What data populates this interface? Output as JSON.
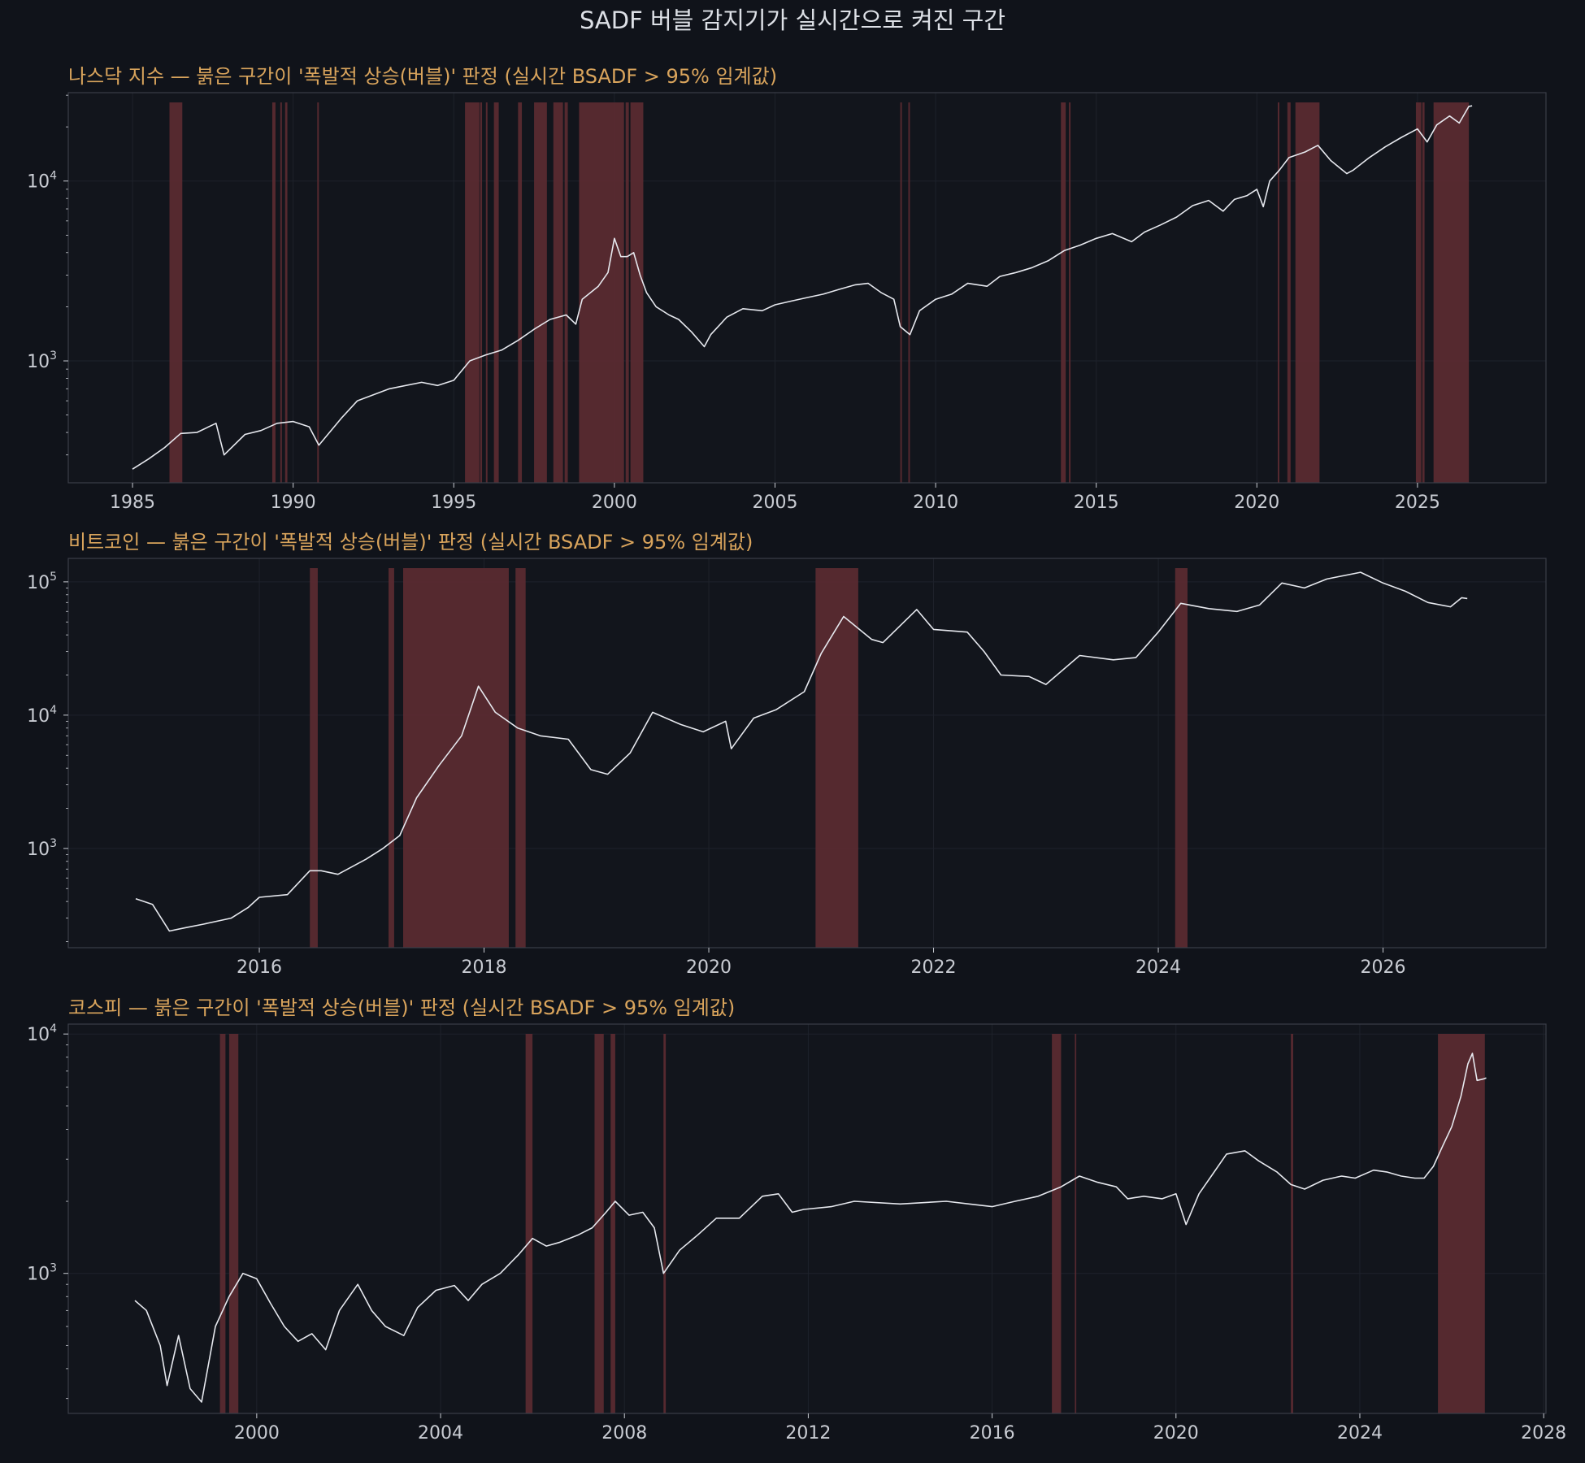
{
  "figure_title": "SADF 버블 감지기가 실시간으로 켜진 구간",
  "colors": {
    "background": "#10131a",
    "plot_background": "#12151c",
    "frame": "#3a3e48",
    "grid": "#1e222b",
    "price_line": "#e6e8ee",
    "bubble_fill": "#5a2a30",
    "title_text": "#d9a45c",
    "tick_text": "#c9ccd3"
  },
  "chart_data": [
    {
      "type": "line",
      "title": "나스닥 지수 — 붉은 구간이 '폭발적 상승(버블)' 판정 (실시간 BSADF > 95% 임계값)",
      "yscale": "log",
      "xlim": [
        1983,
        2029
      ],
      "ylim": [
        210,
        31000
      ],
      "xticks": [
        1985,
        1990,
        1995,
        2000,
        2005,
        2010,
        2015,
        2020,
        2025
      ],
      "xtick_labels": [
        "1985",
        "1990",
        "1995",
        "2000",
        "2005",
        "2010",
        "2015",
        "2020",
        "2025"
      ],
      "yticks": [
        1000,
        10000
      ],
      "ytick_labels": [
        [
          "10",
          "3"
        ],
        [
          "10",
          "4"
        ]
      ],
      "series": [
        {
          "x": [
            1985.0,
            1985.5,
            1986.0,
            1986.5,
            1987.0,
            1987.6,
            1987.85,
            1988.5,
            1989.0,
            1989.5,
            1990.0,
            1990.5,
            1990.8,
            1991.5,
            1992.0,
            1993.0,
            1994.0,
            1994.5,
            1995.0,
            1995.5,
            1996.0,
            1996.5,
            1997.0,
            1997.5,
            1998.0,
            1998.5,
            1998.8,
            1999.0,
            1999.5,
            1999.8,
            2000.0,
            2000.2,
            2000.4,
            2000.6,
            2000.8,
            2001.0,
            2001.3,
            2001.7,
            2002.0,
            2002.4,
            2002.8,
            2003.0,
            2003.5,
            2004.0,
            2004.6,
            2005.0,
            2005.5,
            2006.0,
            2006.5,
            2007.0,
            2007.5,
            2007.9,
            2008.3,
            2008.7,
            2008.9,
            2009.2,
            2009.5,
            2010.0,
            2010.5,
            2011.0,
            2011.6,
            2012.0,
            2012.5,
            2013.0,
            2013.5,
            2014.0,
            2014.5,
            2015.0,
            2015.5,
            2016.1,
            2016.5,
            2017.0,
            2017.5,
            2018.0,
            2018.5,
            2018.95,
            2019.3,
            2019.7,
            2020.0,
            2020.2,
            2020.4,
            2020.7,
            2021.0,
            2021.5,
            2021.9,
            2022.3,
            2022.8,
            2023.0,
            2023.5,
            2024.0,
            2024.5,
            2025.0,
            2025.3,
            2025.6,
            2026.0,
            2026.3,
            2026.6,
            2026.7
          ],
          "y": [
            250,
            285,
            330,
            395,
            400,
            450,
            300,
            390,
            410,
            450,
            460,
            430,
            340,
            480,
            600,
            700,
            760,
            730,
            780,
            1000,
            1080,
            1150,
            1300,
            1500,
            1700,
            1800,
            1600,
            2200,
            2600,
            3100,
            4800,
            3800,
            3800,
            4000,
            3000,
            2400,
            2000,
            1800,
            1700,
            1450,
            1200,
            1400,
            1750,
            1950,
            1900,
            2050,
            2150,
            2250,
            2350,
            2500,
            2650,
            2700,
            2400,
            2200,
            1550,
            1400,
            1900,
            2200,
            2350,
            2700,
            2600,
            2950,
            3100,
            3300,
            3600,
            4100,
            4400,
            4800,
            5100,
            4600,
            5200,
            5700,
            6300,
            7300,
            7800,
            6800,
            7900,
            8300,
            9000,
            7200,
            10000,
            11500,
            13500,
            14500,
            15800,
            13000,
            11000,
            11500,
            13500,
            15500,
            17500,
            19500,
            16500,
            20500,
            23000,
            21000,
            26000,
            26200
          ]
        }
      ],
      "bubble_periods": [
        [
          1986.15,
          1986.55
        ],
        [
          1989.35,
          1989.45
        ],
        [
          1989.6,
          1989.65
        ],
        [
          1989.75,
          1989.82
        ],
        [
          1990.75,
          1990.8
        ],
        [
          1995.35,
          1995.8
        ],
        [
          1995.82,
          1995.88
        ],
        [
          1996.0,
          1996.05
        ],
        [
          1996.25,
          1996.4
        ],
        [
          1997.0,
          1997.12
        ],
        [
          1997.5,
          1997.9
        ],
        [
          1998.1,
          1998.4
        ],
        [
          1998.45,
          1998.55
        ],
        [
          1998.9,
          2000.3
        ],
        [
          2000.35,
          2000.45
        ],
        [
          2000.5,
          2000.9
        ],
        [
          2008.9,
          2008.95
        ],
        [
          2009.15,
          2009.2
        ],
        [
          2013.9,
          2014.05
        ],
        [
          2014.15,
          2014.2
        ],
        [
          2020.65,
          2020.7
        ],
        [
          2020.95,
          2021.05
        ],
        [
          2021.2,
          2021.95
        ],
        [
          2024.95,
          2025.12
        ],
        [
          2025.15,
          2025.22
        ],
        [
          2025.5,
          2026.6
        ]
      ]
    },
    {
      "type": "line",
      "title": "비트코인 — 붉은 구간이 '폭발적 상승(버블)' 판정 (실시간 BSADF > 95% 임계값)",
      "yscale": "log",
      "xlim": [
        2014.3,
        2027.45
      ],
      "ylim": [
        180,
        150000
      ],
      "xticks": [
        2016,
        2018,
        2020,
        2022,
        2024,
        2026
      ],
      "xtick_labels": [
        "2016",
        "2018",
        "2020",
        "2022",
        "2024",
        "2026"
      ],
      "yticks": [
        1000,
        10000,
        100000
      ],
      "ytick_labels": [
        [
          "10",
          "3"
        ],
        [
          "10",
          "4"
        ],
        [
          "10",
          "5"
        ]
      ],
      "series": [
        {
          "x": [
            2014.9,
            2015.05,
            2015.2,
            2015.35,
            2015.5,
            2015.75,
            2015.9,
            2016.0,
            2016.25,
            2016.45,
            2016.55,
            2016.7,
            2016.95,
            2017.1,
            2017.25,
            2017.4,
            2017.6,
            2017.8,
            2017.95,
            2018.1,
            2018.3,
            2018.5,
            2018.75,
            2018.95,
            2019.1,
            2019.3,
            2019.5,
            2019.75,
            2019.95,
            2020.15,
            2020.2,
            2020.4,
            2020.6,
            2020.85,
            2021.0,
            2021.2,
            2021.45,
            2021.55,
            2021.85,
            2022.0,
            2022.3,
            2022.45,
            2022.6,
            2022.85,
            2023.0,
            2023.3,
            2023.6,
            2023.8,
            2024.0,
            2024.2,
            2024.45,
            2024.7,
            2024.9,
            2025.1,
            2025.3,
            2025.5,
            2025.8,
            2026.0,
            2026.2,
            2026.4,
            2026.6,
            2026.7,
            2026.75
          ],
          "y": [
            420,
            380,
            240,
            255,
            270,
            300,
            360,
            430,
            450,
            680,
            680,
            640,
            830,
            1000,
            1250,
            2400,
            4200,
            7000,
            16500,
            10500,
            8000,
            7000,
            6600,
            3900,
            3600,
            5200,
            10500,
            8500,
            7500,
            9000,
            5600,
            9500,
            11000,
            15000,
            29000,
            55000,
            37000,
            35000,
            62000,
            44000,
            42000,
            30000,
            20000,
            19500,
            17000,
            28000,
            26000,
            27000,
            42000,
            69000,
            63000,
            60000,
            67000,
            98000,
            90000,
            105000,
            118000,
            98000,
            85000,
            70000,
            65000,
            76000,
            75000
          ]
        }
      ],
      "bubble_periods": [
        [
          2016.45,
          2016.52
        ],
        [
          2017.15,
          2017.2
        ],
        [
          2017.28,
          2018.22
        ],
        [
          2018.28,
          2018.37
        ],
        [
          2020.95,
          2021.33
        ],
        [
          2024.15,
          2024.26
        ]
      ]
    },
    {
      "type": "line",
      "title": "코스피 — 붉은 구간이 '폭발적 상승(버블)' 판정 (실시간 BSADF > 95% 임계값)",
      "yscale": "log",
      "xlim": [
        1995.9,
        2028.05
      ],
      "ylim": [
        260,
        11000
      ],
      "xticks": [
        2000,
        2004,
        2008,
        2012,
        2016,
        2020,
        2024,
        2028
      ],
      "xtick_labels": [
        "2000",
        "2004",
        "2008",
        "2012",
        "2016",
        "2020",
        "2024",
        "2028"
      ],
      "yticks": [
        1000,
        10000
      ],
      "ytick_labels": [
        [
          "10",
          "3"
        ],
        [
          "10",
          "4"
        ]
      ],
      "series": [
        {
          "x": [
            1997.35,
            1997.6,
            1997.9,
            1998.05,
            1998.3,
            1998.55,
            1998.8,
            1999.1,
            1999.4,
            1999.7,
            2000.0,
            2000.3,
            2000.6,
            2000.9,
            2001.2,
            2001.5,
            2001.8,
            2002.2,
            2002.5,
            2002.8,
            2003.2,
            2003.5,
            2003.9,
            2004.3,
            2004.6,
            2004.9,
            2005.3,
            2005.7,
            2006.0,
            2006.3,
            2006.6,
            2007.0,
            2007.3,
            2007.6,
            2007.8,
            2008.1,
            2008.4,
            2008.65,
            2008.85,
            2009.2,
            2009.6,
            2010.0,
            2010.5,
            2011.0,
            2011.35,
            2011.65,
            2011.9,
            2012.5,
            2013.0,
            2014.0,
            2015.0,
            2015.5,
            2016.0,
            2016.5,
            2017.0,
            2017.5,
            2017.9,
            2018.3,
            2018.7,
            2018.95,
            2019.3,
            2019.7,
            2020.0,
            2020.22,
            2020.5,
            2020.8,
            2021.1,
            2021.5,
            2021.8,
            2022.2,
            2022.5,
            2022.8,
            2023.2,
            2023.6,
            2023.9,
            2024.3,
            2024.6,
            2024.9,
            2025.2,
            2025.4,
            2025.6,
            2025.8,
            2026.0,
            2026.2,
            2026.35,
            2026.45,
            2026.55,
            2026.7,
            2026.75
          ],
          "y": [
            770,
            700,
            500,
            340,
            550,
            330,
            290,
            600,
            800,
            1000,
            950,
            750,
            600,
            520,
            560,
            480,
            700,
            900,
            700,
            600,
            550,
            720,
            850,
            890,
            770,
            900,
            1000,
            1200,
            1400,
            1300,
            1350,
            1450,
            1550,
            1800,
            2000,
            1750,
            1800,
            1550,
            1000,
            1250,
            1450,
            1700,
            1700,
            2100,
            2150,
            1800,
            1850,
            1900,
            2000,
            1950,
            2000,
            1950,
            1900,
            2000,
            2100,
            2300,
            2550,
            2400,
            2300,
            2050,
            2100,
            2050,
            2150,
            1600,
            2150,
            2600,
            3150,
            3250,
            2950,
            2650,
            2350,
            2250,
            2450,
            2550,
            2500,
            2700,
            2650,
            2550,
            2500,
            2500,
            2800,
            3400,
            4100,
            5500,
            7500,
            8300,
            6400,
            6500,
            6550
          ]
        }
      ],
      "bubble_periods": [
        [
          1999.2,
          1999.32
        ],
        [
          1999.4,
          1999.6
        ],
        [
          2005.85,
          2006.0
        ],
        [
          2007.35,
          2007.55
        ],
        [
          2007.7,
          2007.8
        ],
        [
          2008.85,
          2008.9
        ],
        [
          2017.3,
          2017.5
        ],
        [
          2017.8,
          2017.83
        ],
        [
          2022.5,
          2022.55
        ],
        [
          2025.7,
          2026.72
        ]
      ]
    }
  ]
}
